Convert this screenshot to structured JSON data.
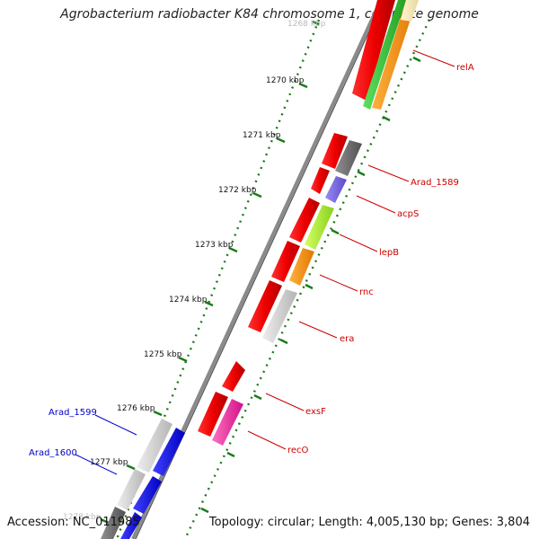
{
  "title": "Agrobacterium radiobacter K84 chromosome 1, complete genome",
  "accession": "Accession: NC_011985",
  "topology": "Topology: circular; Length: 4,005,130 bp; Genes: 3,804",
  "colors": {
    "tick": "#1a7a1a",
    "backbone": "#777777",
    "label_forward": "#cc0000",
    "label_reverse": "#0000cc"
  },
  "ticks": [
    {
      "label": "1268 kbp"
    },
    {
      "label": "1270 kbp"
    },
    {
      "label": "1271 kbp"
    },
    {
      "label": "1272 kbp"
    },
    {
      "label": "1273 kbp"
    },
    {
      "label": "1274 kbp"
    },
    {
      "label": "1275 kbp"
    },
    {
      "label": "1276 kbp"
    },
    {
      "label": "1277 kbp"
    },
    {
      "label": "1278 kbp"
    }
  ],
  "gene_labels": [
    {
      "name": "relA",
      "strand": "forward"
    },
    {
      "name": "Arad_1589",
      "strand": "forward"
    },
    {
      "name": "acpS",
      "strand": "forward"
    },
    {
      "name": "lepB",
      "strand": "forward"
    },
    {
      "name": "rnc",
      "strand": "forward"
    },
    {
      "name": "era",
      "strand": "forward"
    },
    {
      "name": "exsF",
      "strand": "forward"
    },
    {
      "name": "recO",
      "strand": "forward"
    },
    {
      "name": "Arad_1599",
      "strand": "reverse"
    },
    {
      "name": "Arad_1600",
      "strand": "reverse"
    }
  ]
}
